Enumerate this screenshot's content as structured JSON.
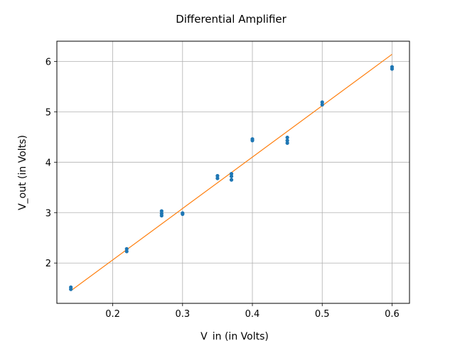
{
  "chart_data": {
    "type": "scatter",
    "title": "Differential Amplifier",
    "xlabel": "V_in (in Volts)",
    "ylabel": "V_out (in Volts)",
    "xlim": [
      0.12,
      0.625
    ],
    "ylim": [
      1.2,
      6.4
    ],
    "xticks": [
      "0.2",
      "0.3",
      "0.4",
      "0.5",
      "0.6"
    ],
    "yticks": [
      "2",
      "3",
      "4",
      "5",
      "6"
    ],
    "grid": true,
    "series": [
      {
        "kind": "scatter",
        "color": "#1f77b4",
        "points": [
          {
            "x": 0.14,
            "y": 1.48
          },
          {
            "x": 0.14,
            "y": 1.52
          },
          {
            "x": 0.22,
            "y": 2.23
          },
          {
            "x": 0.22,
            "y": 2.28
          },
          {
            "x": 0.27,
            "y": 2.94
          },
          {
            "x": 0.27,
            "y": 2.98
          },
          {
            "x": 0.27,
            "y": 3.03
          },
          {
            "x": 0.3,
            "y": 2.97
          },
          {
            "x": 0.3,
            "y": 2.99
          },
          {
            "x": 0.35,
            "y": 3.68
          },
          {
            "x": 0.35,
            "y": 3.73
          },
          {
            "x": 0.37,
            "y": 3.65
          },
          {
            "x": 0.37,
            "y": 3.72
          },
          {
            "x": 0.37,
            "y": 3.77
          },
          {
            "x": 0.4,
            "y": 4.43
          },
          {
            "x": 0.4,
            "y": 4.46
          },
          {
            "x": 0.45,
            "y": 4.38
          },
          {
            "x": 0.45,
            "y": 4.43
          },
          {
            "x": 0.45,
            "y": 4.49
          },
          {
            "x": 0.5,
            "y": 5.14
          },
          {
            "x": 0.5,
            "y": 5.19
          },
          {
            "x": 0.6,
            "y": 5.85
          },
          {
            "x": 0.6,
            "y": 5.89
          }
        ]
      },
      {
        "kind": "line",
        "color": "#ff7f0e",
        "points": [
          {
            "x": 0.14,
            "y": 1.45
          },
          {
            "x": 0.6,
            "y": 6.14
          }
        ]
      }
    ]
  }
}
